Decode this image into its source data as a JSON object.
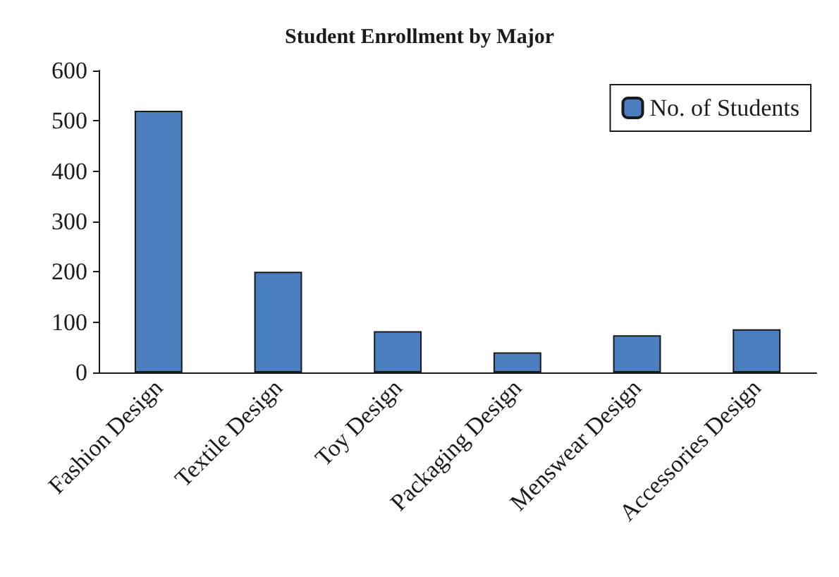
{
  "chart_data": {
    "type": "bar",
    "title": "Student Enrollment by Major",
    "categories": [
      "Fashion Design",
      "Textile Design",
      "Toy Design",
      "Packaging Design",
      "Menswear Design",
      "Accessories Design"
    ],
    "series": [
      {
        "name": "No. of Students",
        "color": "#4a7ebf",
        "values": [
          520,
          200,
          82,
          40,
          74,
          86
        ]
      }
    ],
    "ylim": [
      0,
      600
    ],
    "yticks": [
      0,
      100,
      200,
      300,
      400,
      500,
      600
    ],
    "grid": false,
    "legend": "top right"
  }
}
